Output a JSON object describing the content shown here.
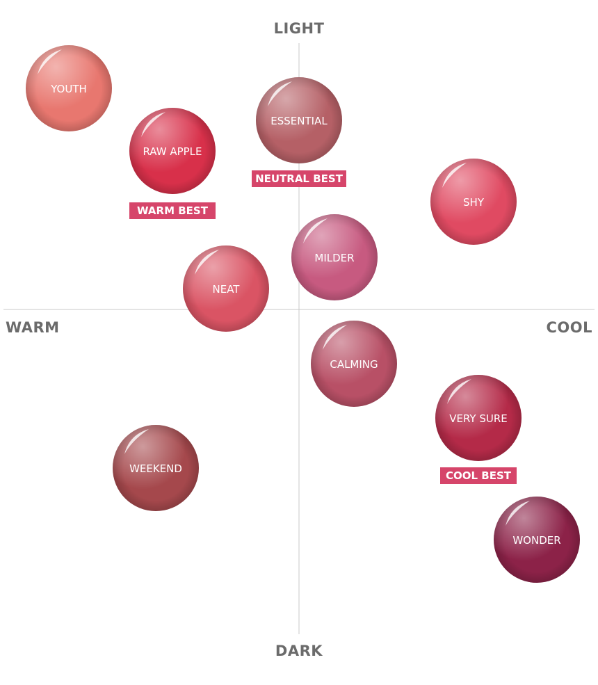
{
  "axes": {
    "top": "LIGHT",
    "bottom": "DARK",
    "left": "WARM",
    "right": "COOL"
  },
  "swatches": [
    {
      "label": "YOUTH"
    },
    {
      "label": "RAW APPLE",
      "badge": "WARM BEST"
    },
    {
      "label": "ESSENTIAL",
      "badge": "NEUTRAL BEST"
    },
    {
      "label": "SHY"
    },
    {
      "label": "MILDER"
    },
    {
      "label": "NEAT"
    },
    {
      "label": "CALMING"
    },
    {
      "label": "VERY SURE",
      "badge": "COOL BEST"
    },
    {
      "label": "WEEKEND"
    },
    {
      "label": "WONDER"
    }
  ]
}
